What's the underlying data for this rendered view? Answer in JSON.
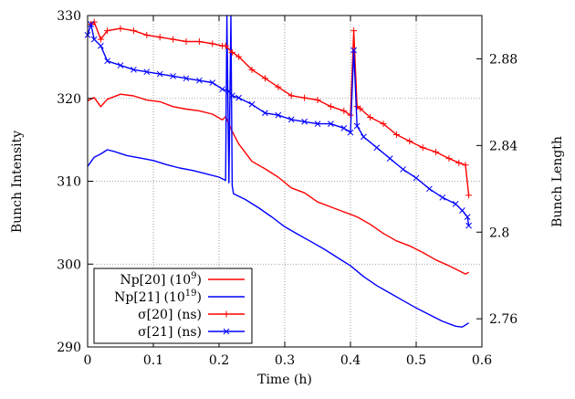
{
  "chart_data": {
    "type": "line",
    "xlabel": "Time (h)",
    "ylabel_left": "Bunch Intensity",
    "ylabel_right": "Bunch Length",
    "xlim": [
      0,
      0.6
    ],
    "ylim_left": [
      290,
      330
    ],
    "ylim_right": [
      2.747,
      2.9
    ],
    "x_ticks": [
      "0",
      "0.1",
      "0.2",
      "0.3",
      "0.4",
      "0.5",
      "0.6"
    ],
    "y_left_ticks": [
      "290",
      "300",
      "310",
      "320",
      "330"
    ],
    "y_right_ticks": [
      "2.76",
      "2.8",
      "2.84",
      "2.88"
    ],
    "grid": true,
    "legend_position": "bottom-left",
    "colors": {
      "red": "#ff0000",
      "blue": "#0000ff"
    },
    "series": [
      {
        "name": "Np[20] (10",
        "sup": "9",
        "name_tail": ")",
        "axis": "left",
        "color": "#ff0000",
        "marker": "none",
        "x": [
          0.0,
          0.01,
          0.02,
          0.03,
          0.05,
          0.07,
          0.09,
          0.11,
          0.13,
          0.15,
          0.17,
          0.19,
          0.205,
          0.21,
          0.22,
          0.23,
          0.25,
          0.27,
          0.29,
          0.31,
          0.33,
          0.35,
          0.37,
          0.39,
          0.41,
          0.43,
          0.45,
          0.47,
          0.49,
          0.51,
          0.53,
          0.55,
          0.565,
          0.575,
          0.58
        ],
        "y": [
          319.7,
          320.1,
          319.0,
          319.9,
          320.5,
          320.3,
          319.8,
          319.6,
          319.0,
          318.7,
          318.5,
          318.1,
          317.4,
          317.8,
          316.0,
          314.5,
          312.4,
          311.5,
          310.5,
          309.2,
          308.6,
          307.5,
          306.9,
          306.3,
          305.7,
          304.8,
          303.7,
          302.8,
          302.2,
          301.4,
          300.5,
          299.8,
          299.2,
          298.8,
          299.0
        ]
      },
      {
        "name": "Np[21] (10",
        "sup": "19",
        "name_tail": ")",
        "axis": "left",
        "color": "#0000ff",
        "marker": "none",
        "x": [
          0.0,
          0.01,
          0.02,
          0.03,
          0.04,
          0.06,
          0.08,
          0.1,
          0.12,
          0.14,
          0.16,
          0.18,
          0.2,
          0.21,
          0.212,
          0.215,
          0.218,
          0.22,
          0.222,
          0.24,
          0.26,
          0.28,
          0.3,
          0.32,
          0.34,
          0.36,
          0.38,
          0.4,
          0.42,
          0.44,
          0.46,
          0.48,
          0.5,
          0.52,
          0.54,
          0.56,
          0.57,
          0.58
        ],
        "y": [
          311.8,
          312.9,
          313.3,
          313.8,
          313.6,
          313.1,
          312.8,
          312.5,
          312.0,
          311.6,
          311.3,
          310.9,
          310.5,
          310.1,
          330.0,
          309.8,
          330.0,
          309.5,
          308.5,
          307.8,
          306.8,
          305.7,
          304.5,
          303.6,
          302.7,
          301.8,
          300.8,
          299.8,
          298.5,
          297.4,
          296.5,
          295.6,
          294.7,
          293.9,
          293.1,
          292.5,
          292.4,
          292.9
        ]
      },
      {
        "name": "σ[20] (ns)",
        "axis": "right",
        "color": "#ff0000",
        "marker": "plus",
        "x": [
          0.005,
          0.01,
          0.02,
          0.03,
          0.05,
          0.07,
          0.09,
          0.11,
          0.13,
          0.15,
          0.17,
          0.19,
          0.205,
          0.21,
          0.22,
          0.23,
          0.25,
          0.27,
          0.29,
          0.31,
          0.33,
          0.35,
          0.37,
          0.39,
          0.4,
          0.405,
          0.41,
          0.415,
          0.43,
          0.45,
          0.47,
          0.49,
          0.51,
          0.53,
          0.55,
          0.565,
          0.575,
          0.58
        ],
        "y": [
          2.896,
          2.897,
          2.889,
          2.893,
          2.894,
          2.893,
          2.891,
          2.89,
          2.889,
          2.888,
          2.888,
          2.887,
          2.886,
          2.886,
          2.883,
          2.881,
          2.875,
          2.871,
          2.867,
          2.863,
          2.862,
          2.861,
          2.858,
          2.856,
          2.854,
          2.893,
          2.858,
          2.857,
          2.853,
          2.85,
          2.845,
          2.842,
          2.839,
          2.837,
          2.834,
          2.832,
          2.831,
          2.817
        ]
      },
      {
        "name": "σ[21] (ns)",
        "axis": "right",
        "color": "#0000ff",
        "marker": "x",
        "x": [
          0.0,
          0.005,
          0.01,
          0.02,
          0.03,
          0.05,
          0.07,
          0.09,
          0.11,
          0.13,
          0.15,
          0.17,
          0.19,
          0.205,
          0.215,
          0.22,
          0.23,
          0.25,
          0.27,
          0.29,
          0.31,
          0.33,
          0.35,
          0.37,
          0.39,
          0.4,
          0.405,
          0.41,
          0.42,
          0.44,
          0.46,
          0.48,
          0.5,
          0.52,
          0.54,
          0.56,
          0.57,
          0.578,
          0.58
        ],
        "y": [
          2.891,
          2.896,
          2.889,
          2.886,
          2.879,
          2.877,
          2.875,
          2.874,
          2.873,
          2.872,
          2.871,
          2.87,
          2.869,
          2.866,
          2.865,
          2.863,
          2.862,
          2.859,
          2.855,
          2.854,
          2.852,
          2.851,
          2.85,
          2.85,
          2.848,
          2.846,
          2.884,
          2.849,
          2.844,
          2.839,
          2.834,
          2.829,
          2.825,
          2.82,
          2.816,
          2.813,
          2.81,
          2.807,
          2.803
        ]
      }
    ]
  }
}
